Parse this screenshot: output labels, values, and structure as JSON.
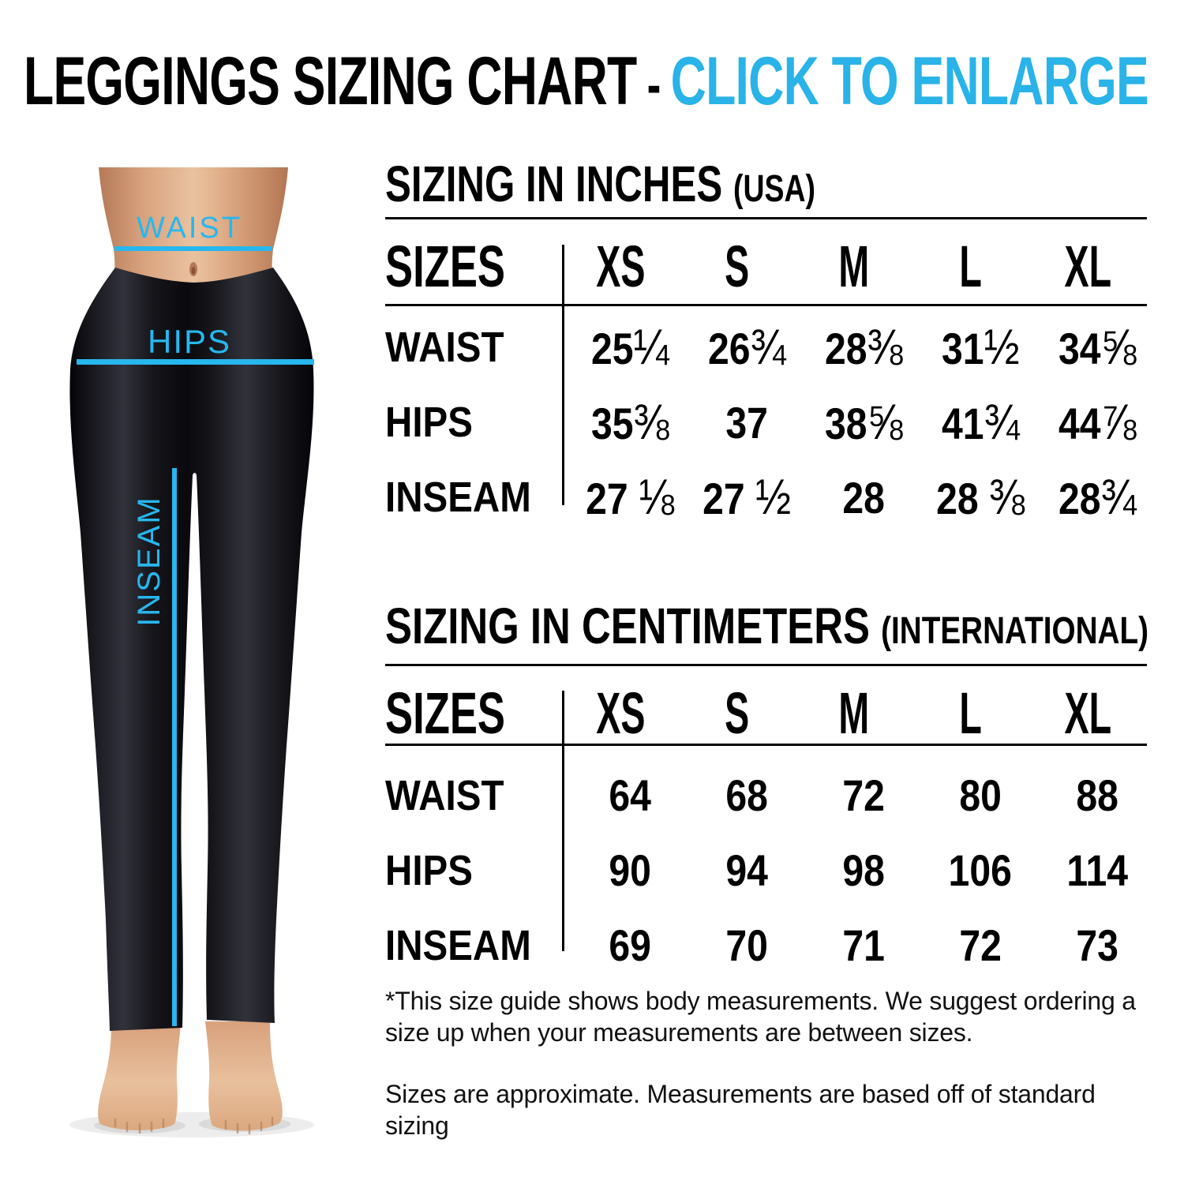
{
  "title": {
    "main": "LEGGINGS SIZING CHART",
    "separator": "-",
    "cta": "CLICK TO ENLARGE"
  },
  "colors": {
    "title_cta": "#29B3E8",
    "figure_accent": "#27B7EE"
  },
  "figure": {
    "waist_label": "WAIST",
    "hips_label": "HIPS",
    "inseam_label": "INSEAM"
  },
  "tables": [
    {
      "heading": "SIZING IN INCHES",
      "heading_suffix": "(USA)",
      "sizes_label": "SIZES",
      "columns": [
        "XS",
        "S",
        "M",
        "L",
        "XL"
      ],
      "rows": [
        {
          "label": "WAIST",
          "values": [
            "25¼",
            "26¾",
            "28⅜",
            "31½",
            "34⅝"
          ]
        },
        {
          "label": "HIPS",
          "values": [
            "35⅜",
            "37",
            "38⅝",
            "41¾",
            "44⅞"
          ]
        },
        {
          "label": "INSEAM",
          "values": [
            "27 ⅛",
            "27 ½",
            "28",
            "28 ⅜",
            "28¾"
          ]
        }
      ]
    },
    {
      "heading": "SIZING IN CENTIMETERS",
      "heading_suffix": "(INTERNATIONAL)",
      "sizes_label": "SIZES",
      "columns": [
        "XS",
        "S",
        "M",
        "L",
        "XL"
      ],
      "rows": [
        {
          "label": "WAIST",
          "values": [
            "64",
            "68",
            "72",
            "80",
            "88"
          ]
        },
        {
          "label": "HIPS",
          "values": [
            "90",
            "94",
            "98",
            "106",
            "114"
          ]
        },
        {
          "label": "INSEAM",
          "values": [
            "69",
            "70",
            "71",
            "72",
            "73"
          ]
        }
      ]
    }
  ],
  "notes": [
    "*This size guide shows body measurements. We suggest ordering a size up when your measurements are between sizes.",
    "Sizes are approximate. Measurements are based off of standard sizing"
  ]
}
